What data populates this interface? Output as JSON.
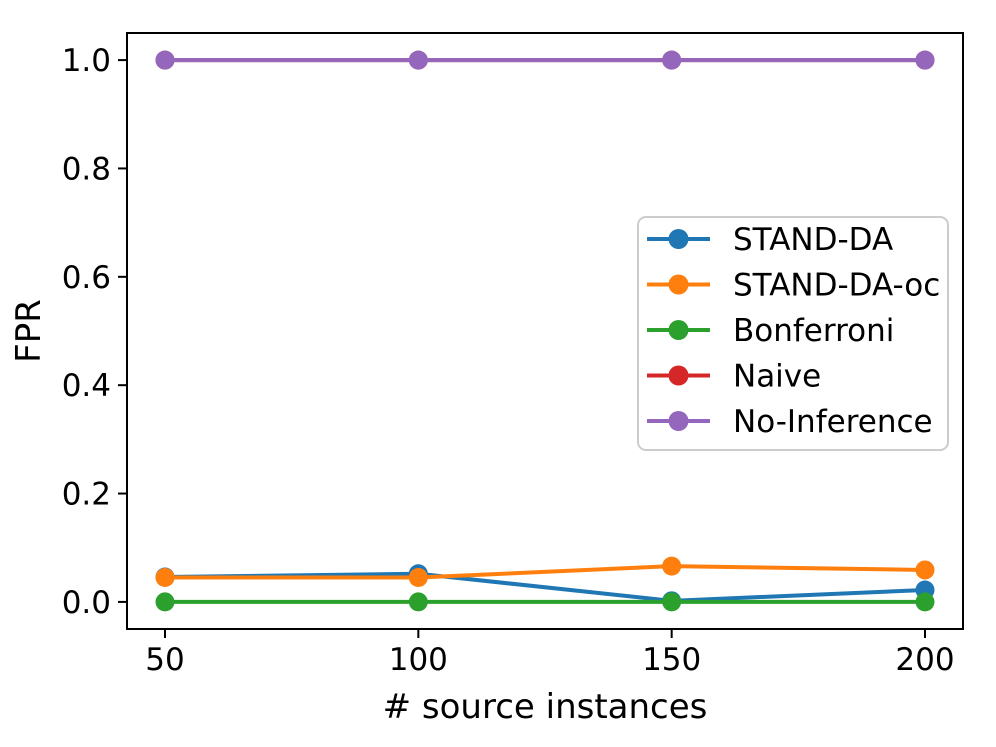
{
  "figure": {
    "background": "#ffffff",
    "spine_color": "#000000"
  },
  "chart_data": {
    "type": "line",
    "title": "",
    "xlabel": "# source instances",
    "ylabel": "FPR",
    "x": [
      50,
      100,
      150,
      200
    ],
    "xtick_labels": [
      "50",
      "100",
      "150",
      "200"
    ],
    "yticks": [
      0.0,
      0.2,
      0.4,
      0.6,
      0.8,
      1.0
    ],
    "ytick_labels": [
      "0.0",
      "0.2",
      "0.4",
      "0.6",
      "0.8",
      "1.0"
    ],
    "xlim": [
      42.5,
      207.5
    ],
    "ylim": [
      -0.05,
      1.05
    ],
    "grid": false,
    "marker": "circle",
    "legend_position": "inside-right",
    "series": [
      {
        "name": "STAND-DA",
        "color": "#1f77b4",
        "values": [
          0.046,
          0.052,
          0.002,
          0.022
        ]
      },
      {
        "name": "STAND-DA-oc",
        "color": "#ff7f0e",
        "values": [
          0.045,
          0.045,
          0.066,
          0.059
        ]
      },
      {
        "name": "Bonferroni",
        "color": "#2ca02c",
        "values": [
          0.0,
          0.0,
          0.0,
          0.0
        ]
      },
      {
        "name": "Naive",
        "color": "#d62728",
        "values": [
          1.0,
          1.0,
          1.0,
          1.0
        ]
      },
      {
        "name": "No-Inference",
        "color": "#9467bd",
        "values": [
          1.0,
          1.0,
          1.0,
          1.0
        ]
      }
    ],
    "legend": {
      "labels": [
        "STAND-DA",
        "STAND-DA-oc",
        "Bonferroni",
        "Naive",
        "No-Inference"
      ],
      "border_color": "#cccccc",
      "background": "#ffffff"
    }
  }
}
